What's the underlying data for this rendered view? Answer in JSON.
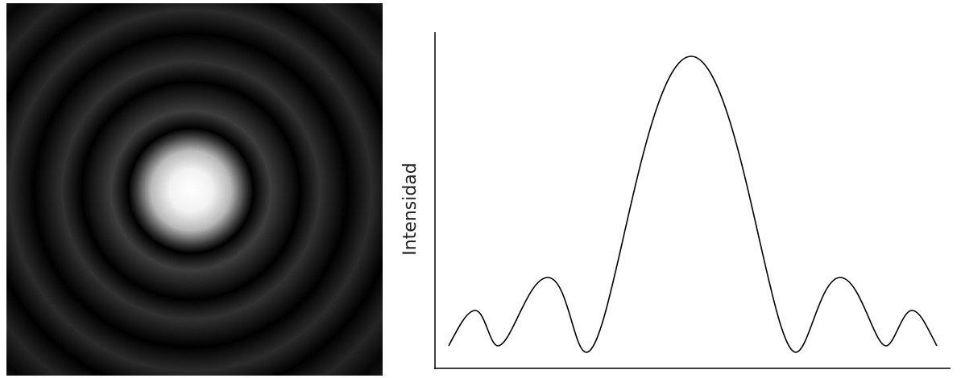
{
  "y_axis_label": "Intensidad"
}
